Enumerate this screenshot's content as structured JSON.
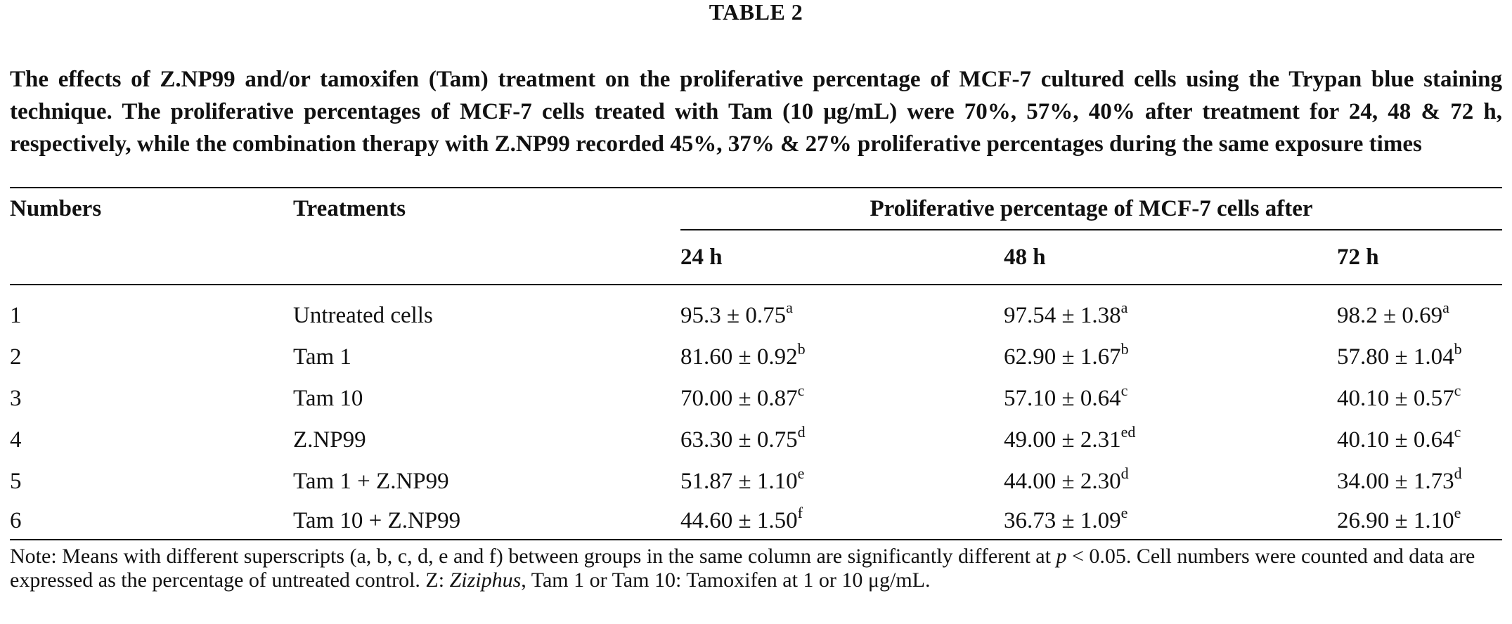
{
  "table_label": "TABLE 2",
  "caption": "The effects of Z.NP99 and/or tamoxifen (Tam) treatment on the proliferative percentage of MCF-7 cultured cells using the Trypan blue staining technique. The proliferative percentages of MCF-7 cells treated with Tam (10 μg/mL) were 70%, 57%, 40% after treatment for 24, 48 & 72 h, respectively, while the combination therapy with Z.NP99 recorded 45%, 37% & 27% proliferative percentages during the same exposure times",
  "headers": {
    "numbers": "Numbers",
    "treatments": "Treatments",
    "group": "Proliferative percentage of MCF-7 cells after",
    "t24": "24 h",
    "t48": "48 h",
    "t72": "72 h"
  },
  "rows": [
    {
      "num": "1",
      "treatment": "Untreated cells",
      "v24": "95.3 ± 0.75",
      "s24": "a",
      "v48": "97.54 ± 1.38",
      "s48": "a",
      "v72": "98.2 ± 0.69",
      "s72": "a"
    },
    {
      "num": "2",
      "treatment": "Tam 1",
      "v24": "81.60 ± 0.92",
      "s24": "b",
      "v48": "62.90 ± 1.67",
      "s48": "b",
      "v72": "57.80 ± 1.04",
      "s72": "b"
    },
    {
      "num": "3",
      "treatment": "Tam 10",
      "v24": "70.00 ± 0.87",
      "s24": "c",
      "v48": "57.10 ± 0.64",
      "s48": "c",
      "v72": "40.10 ± 0.57",
      "s72": "c"
    },
    {
      "num": "4",
      "treatment": "Z.NP99",
      "v24": "63.30 ± 0.75",
      "s24": "d",
      "v48": "49.00 ± 2.31",
      "s48": "ed",
      "v72": "40.10 ± 0.64",
      "s72": "c"
    },
    {
      "num": "5",
      "treatment": "Tam 1 + Z.NP99",
      "v24": "51.87 ± 1.10",
      "s24": "e",
      "v48": "44.00 ± 2.30",
      "s48": "d",
      "v72": "34.00 ± 1.73",
      "s72": "d"
    },
    {
      "num": "6",
      "treatment": "Tam 10 + Z.NP99",
      "v24": "44.60 ± 1.50",
      "s24": "f",
      "v48": "36.73 ± 1.09",
      "s48": "e",
      "v72": "26.90 ± 1.10",
      "s72": "e"
    }
  ],
  "note": {
    "part1": "Note: Means with different superscripts (a, b, c, d, e and f) between groups in the same column are significantly different at ",
    "p_symbol": "p",
    "part2": " < 0.05. Cell numbers were counted and data are expressed as the percentage of untreated control. Z: ",
    "genus": "Ziziphus",
    "part3": ", Tam 1 or Tam 10: Tamoxifen at 1 or 10 μg/mL."
  }
}
